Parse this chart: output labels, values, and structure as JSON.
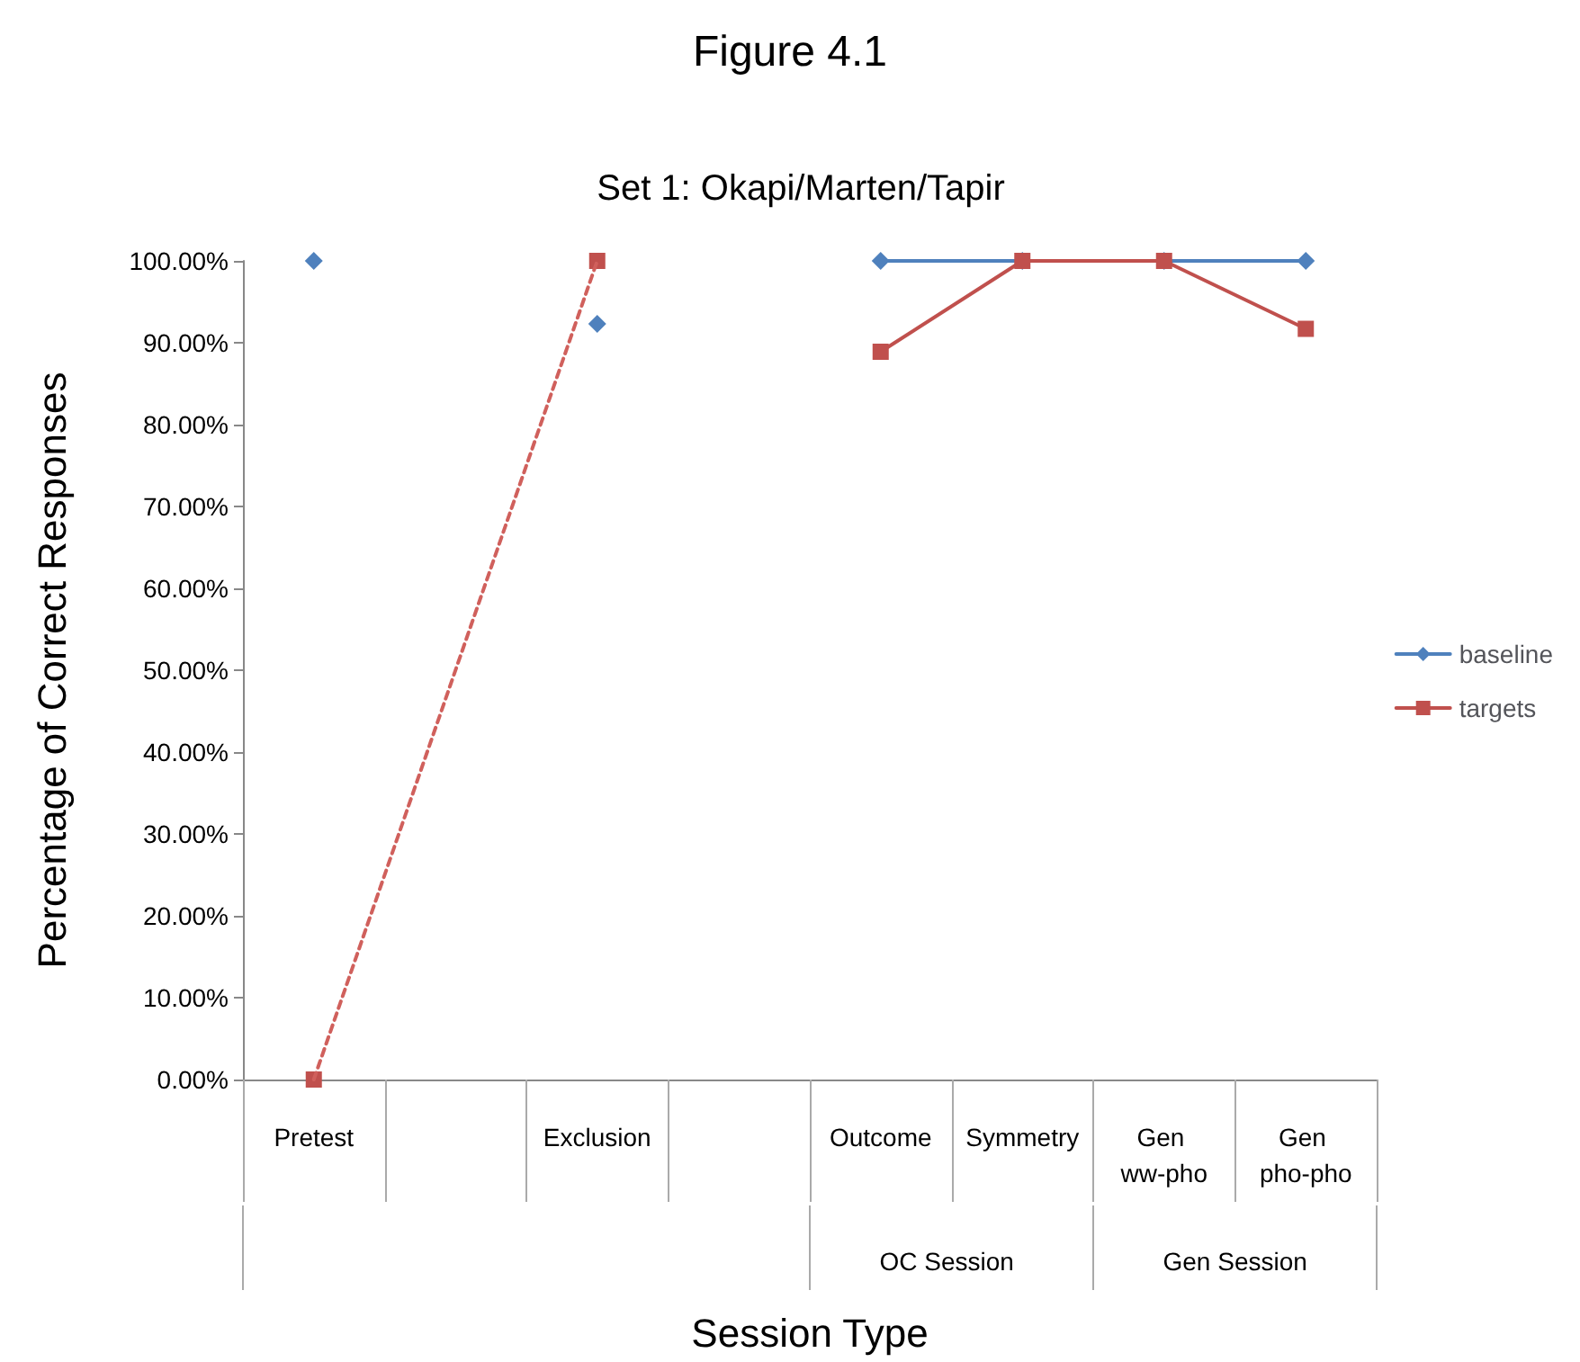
{
  "chart_data": {
    "type": "line",
    "title": "Figure 4.1",
    "subtitle": "Set 1: Okapi/Marten/Tapir",
    "xlabel": "Session Type",
    "ylabel": "Percentage of Correct Responses",
    "categories": [
      "Pretest",
      null,
      "Exclusion",
      null,
      "Outcome",
      "Symmetry",
      "Gen ww-pho",
      "Gen pho-pho"
    ],
    "series": [
      {
        "name": "baseline",
        "color": "#4f81bd",
        "marker": "diamond",
        "values": [
          100,
          null,
          92.3,
          null,
          100,
          100,
          100,
          100
        ]
      },
      {
        "name": "targets",
        "color": "#c0504d",
        "marker": "square",
        "values": [
          0,
          null,
          100,
          null,
          88.9,
          100,
          100,
          91.7
        ]
      },
      {
        "color": "#d0605c",
        "marker": "none",
        "line_style": "dashed",
        "x": [
          "Pretest",
          "Exclusion"
        ],
        "values": [
          0,
          100
        ]
      }
    ],
    "annotations": [
      "OC Session",
      "Gen Session"
    ],
    "ylim": [
      0,
      100
    ],
    "yticks": [
      {
        "value": 0,
        "label": "0.00%"
      },
      {
        "value": 10,
        "label": "10.00%"
      },
      {
        "value": 20,
        "label": "20.00%"
      },
      {
        "value": 30,
        "label": "30.00%"
      },
      {
        "value": 40,
        "label": "40.00%"
      },
      {
        "value": 50,
        "label": "50.00%"
      },
      {
        "value": 60,
        "label": "60.00%"
      },
      {
        "value": 70,
        "label": "70.00%"
      },
      {
        "value": 80,
        "label": "80.00%"
      },
      {
        "value": 90,
        "label": "90.00%"
      },
      {
        "value": 100,
        "label": "100.00%"
      }
    ],
    "grid": false,
    "legend": "right"
  }
}
